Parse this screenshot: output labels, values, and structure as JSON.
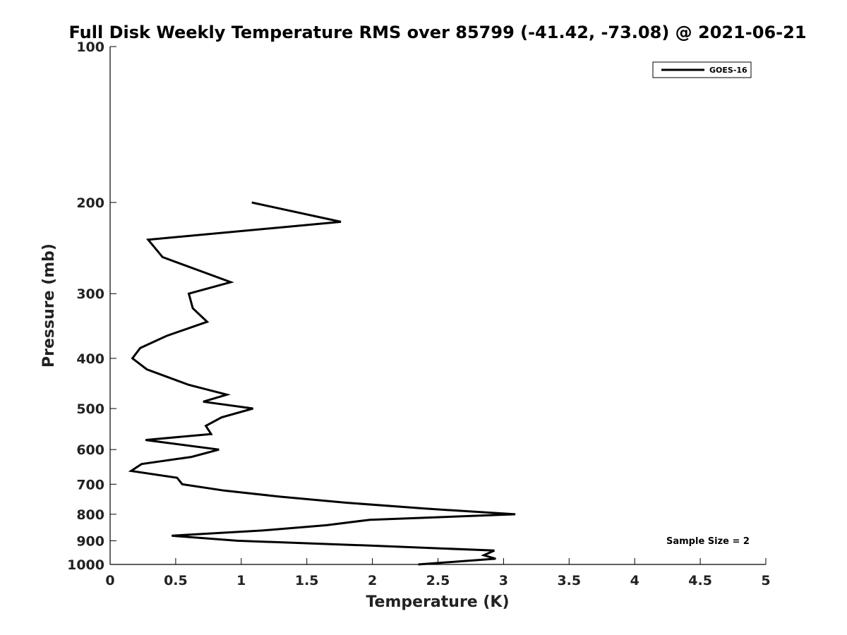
{
  "chart_data": {
    "type": "line",
    "title": "Full Disk Weekly Temperature RMS over 85799 (-41.42, -73.08) @ 2021-06-21",
    "xlabel": "Temperature (K)",
    "ylabel": "Pressure (mb)",
    "xlim": [
      0,
      5
    ],
    "ylim": [
      1000,
      100
    ],
    "y_scale": "log",
    "x_ticks": [
      "0",
      "0.5",
      "1",
      "1.5",
      "2",
      "2.5",
      "3",
      "3.5",
      "4",
      "4.5",
      "5"
    ],
    "x_tick_values": [
      0,
      0.5,
      1,
      1.5,
      2,
      2.5,
      3,
      3.5,
      4,
      4.5,
      5
    ],
    "y_ticks": [
      "100",
      "200",
      "300",
      "400",
      "500",
      "600",
      "700",
      "800",
      "900",
      "1000"
    ],
    "y_tick_values": [
      100,
      200,
      300,
      400,
      500,
      600,
      700,
      800,
      900,
      1000
    ],
    "grid": false,
    "legend_position": "top-right",
    "annotation": "Sample Size = 2",
    "series": [
      {
        "name": "GOES-16",
        "color": "#000000",
        "points": [
          [
            1.08,
            200
          ],
          [
            1.76,
            218
          ],
          [
            0.29,
            236
          ],
          [
            0.4,
            255
          ],
          [
            0.92,
            285
          ],
          [
            0.6,
            300
          ],
          [
            0.63,
            320
          ],
          [
            0.74,
            340
          ],
          [
            0.43,
            362
          ],
          [
            0.23,
            382
          ],
          [
            0.17,
            400
          ],
          [
            0.28,
            420
          ],
          [
            0.6,
            450
          ],
          [
            0.89,
            470
          ],
          [
            0.71,
            485
          ],
          [
            1.09,
            500
          ],
          [
            0.85,
            520
          ],
          [
            0.73,
            540
          ],
          [
            0.77,
            560
          ],
          [
            0.27,
            575
          ],
          [
            0.83,
            600
          ],
          [
            0.62,
            620
          ],
          [
            0.24,
            640
          ],
          [
            0.16,
            660
          ],
          [
            0.51,
            680
          ],
          [
            0.55,
            700
          ],
          [
            0.87,
            720
          ],
          [
            1.3,
            740
          ],
          [
            1.8,
            760
          ],
          [
            2.4,
            780
          ],
          [
            3.09,
            800
          ],
          [
            1.98,
            820
          ],
          [
            1.65,
            840
          ],
          [
            1.16,
            860
          ],
          [
            0.47,
            880
          ],
          [
            0.97,
            900
          ],
          [
            2.0,
            920
          ],
          [
            2.93,
            940
          ],
          [
            2.85,
            960
          ],
          [
            2.94,
            975
          ],
          [
            2.35,
            1000
          ]
        ]
      }
    ]
  }
}
